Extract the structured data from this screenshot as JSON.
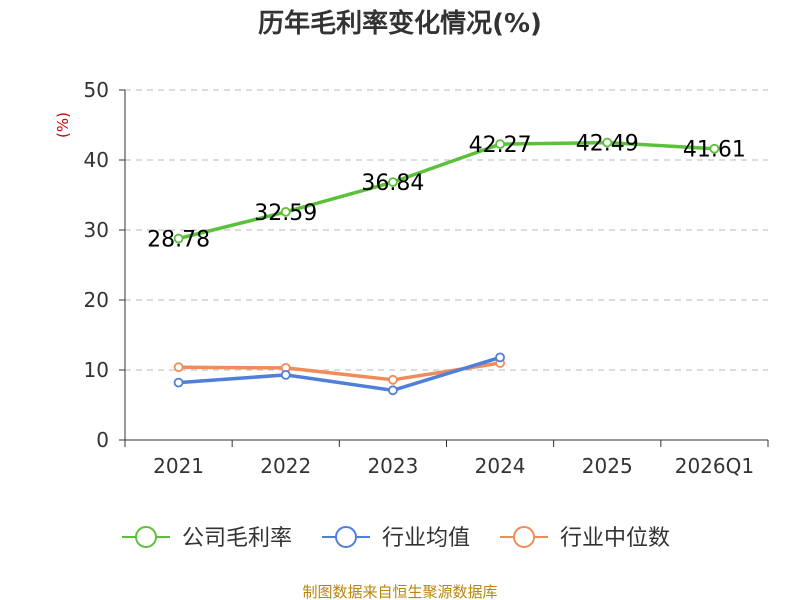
{
  "chart_data": {
    "type": "line",
    "title": "历年毛利率变化情况(%)",
    "ylabel": "(%)",
    "categories": [
      "2021",
      "2022",
      "2023",
      "2024",
      "2025",
      "2026Q1"
    ],
    "ylim": [
      0,
      50
    ],
    "yticks": [
      0,
      10,
      20,
      30,
      40,
      50
    ],
    "grid": true,
    "legend_position": "bottom",
    "series": [
      {
        "name": "公司毛利率",
        "color": "#5cc13a",
        "values": [
          28.78,
          32.59,
          36.84,
          42.27,
          42.49,
          41.61
        ],
        "show_labels": true
      },
      {
        "name": "行业均值",
        "color": "#4f7fd9",
        "values": [
          8.2,
          9.3,
          7.1,
          11.8,
          null,
          null
        ],
        "show_labels": false
      },
      {
        "name": "行业中位数",
        "color": "#f08c5a",
        "values": [
          10.4,
          10.3,
          8.6,
          11.0,
          null,
          null
        ],
        "show_labels": false
      }
    ],
    "source": "制图数据来自恒生聚源数据库"
  }
}
